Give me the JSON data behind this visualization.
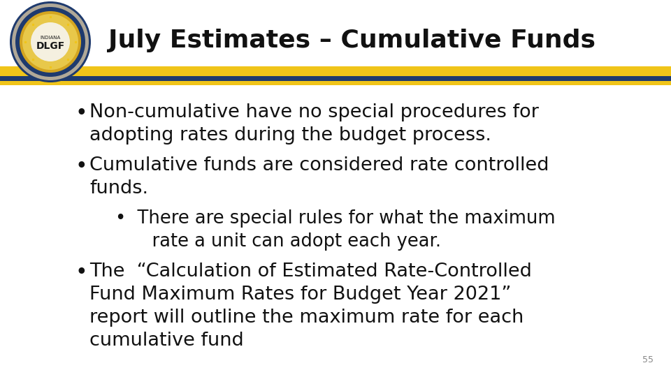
{
  "title": "July Estimates – Cumulative Funds",
  "title_fontsize": 26,
  "title_color": "#111111",
  "background_color": "#ffffff",
  "stripe_gold": "#f0c419",
  "stripe_blue": "#1e3a6e",
  "bullet_items": [
    {
      "level": 1,
      "lines": [
        "Non-cumulative have no special procedures for",
        "adopting rates during the budget process."
      ]
    },
    {
      "level": 1,
      "lines": [
        "Cumulative funds are considered rate controlled",
        "funds."
      ]
    },
    {
      "level": 2,
      "lines": [
        "•  There are special rules for what the maximum",
        "    rate a unit can adopt each year."
      ]
    },
    {
      "level": 1,
      "lines": [
        "The  “Calculation of Estimated Rate-Controlled",
        "Fund Maximum Rates for Budget Year 2021”",
        "report will outline the maximum rate for each",
        "cumulative fund"
      ]
    }
  ],
  "slide_number": "55",
  "text_color": "#111111",
  "bullet_fontsize": 19.5,
  "sub_bullet_fontsize": 18.5,
  "font_family": "DejaVu Sans"
}
